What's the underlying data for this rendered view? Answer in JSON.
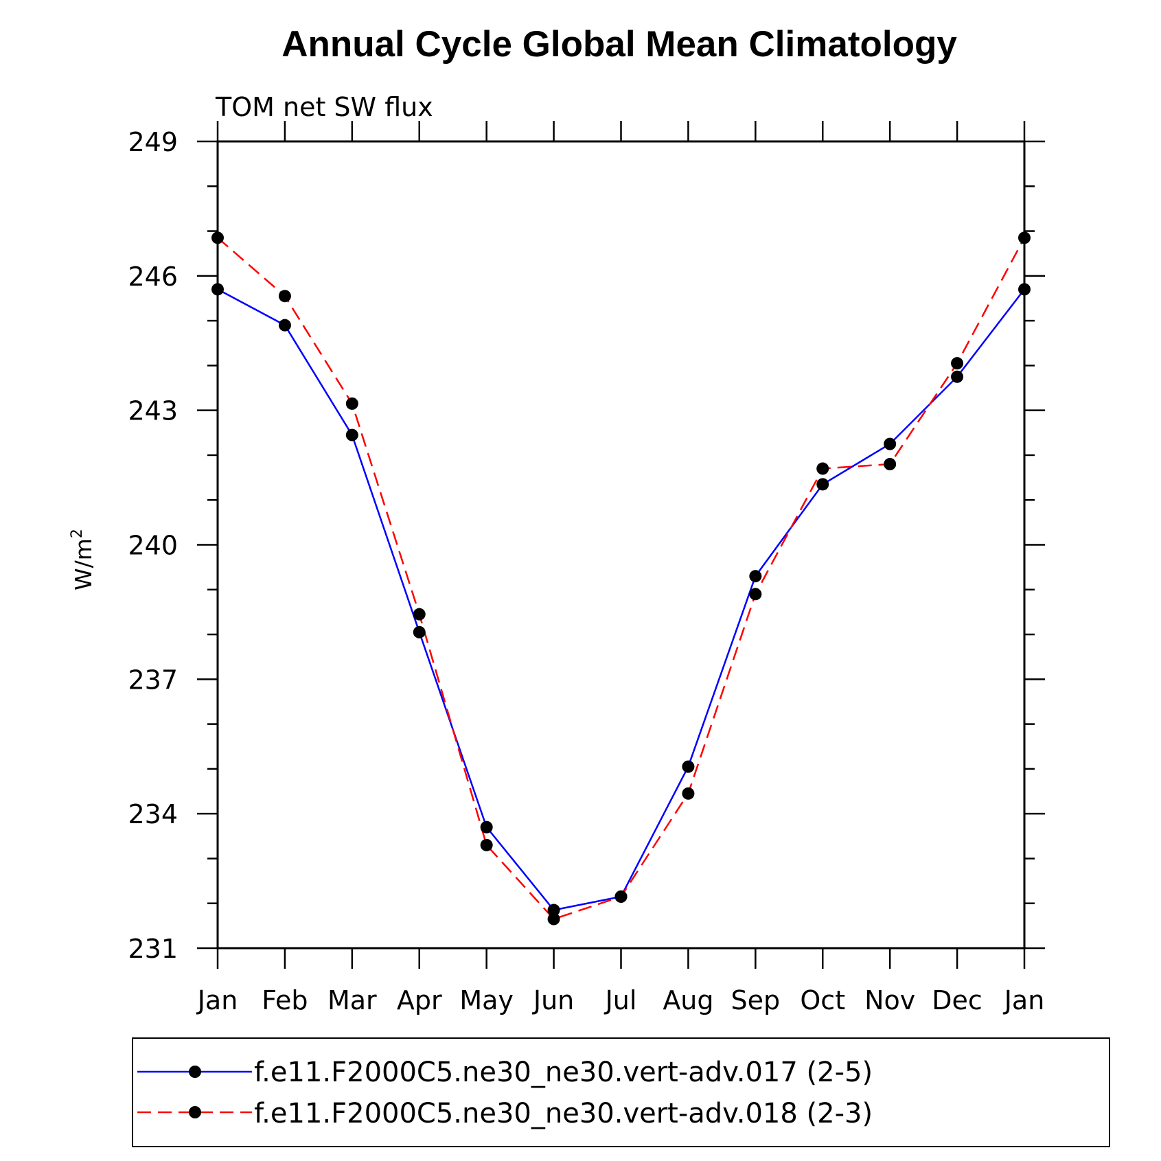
{
  "chart_data": {
    "type": "line",
    "title": "Annual Cycle Global Mean Climatology",
    "subtitle": "TOM net SW flux",
    "ylabel": "W/m",
    "ylabel_sup": "2",
    "xlabel": "",
    "categories": [
      "Jan",
      "Feb",
      "Mar",
      "Apr",
      "May",
      "Jun",
      "Jul",
      "Aug",
      "Sep",
      "Oct",
      "Nov",
      "Dec",
      "Jan"
    ],
    "ylim": [
      231,
      249
    ],
    "yticks": [
      "231",
      "234",
      "237",
      "240",
      "243",
      "246",
      "249"
    ],
    "grid": false,
    "legend_position": "bottom",
    "series": [
      {
        "name": "f.e11.F2000C5.ne30_ne30.vert-adv.017 (2-5)",
        "color": "#0000ff",
        "dash": "solid",
        "marker": "filled-circle",
        "values": [
          245.7,
          244.9,
          242.45,
          238.05,
          233.7,
          231.85,
          232.15,
          235.05,
          239.3,
          241.35,
          242.25,
          243.75,
          245.7
        ]
      },
      {
        "name": "f.e11.F2000C5.ne30_ne30.vert-adv.018 (2-3)",
        "color": "#ff0000",
        "dash": "dashed",
        "marker": "filled-circle",
        "values": [
          246.85,
          245.55,
          243.15,
          238.45,
          233.3,
          231.65,
          232.15,
          234.45,
          238.9,
          241.7,
          241.8,
          244.05,
          246.85
        ]
      }
    ]
  }
}
